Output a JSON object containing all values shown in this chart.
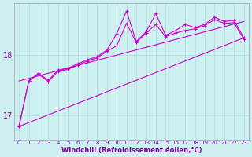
{
  "xlabel": "Windchill (Refroidissement éolien,°C)",
  "bg_color": "#cff0f0",
  "line_color": "#cc00cc",
  "grid_color": "#aadddd",
  "axis_color": "#9999bb",
  "text_color": "#8800aa",
  "xlim": [
    -0.5,
    23.5
  ],
  "ylim": [
    16.6,
    18.85
  ],
  "yticks": [
    17,
    18
  ],
  "xticks": [
    0,
    1,
    2,
    3,
    4,
    5,
    6,
    7,
    8,
    9,
    10,
    11,
    12,
    13,
    14,
    15,
    16,
    17,
    18,
    19,
    20,
    21,
    22,
    23
  ],
  "upper_line_x": [
    0,
    23
  ],
  "upper_line_y": [
    17.57,
    18.55
  ],
  "lower_line_x": [
    0,
    23
  ],
  "lower_line_y": [
    16.82,
    18.28
  ],
  "curve1_x": [
    0,
    1,
    2,
    3,
    4,
    5,
    6,
    7,
    8,
    9,
    10,
    11,
    12,
    13,
    14,
    15,
    16,
    17,
    18,
    19,
    20,
    21,
    22,
    23
  ],
  "curve1_y": [
    16.82,
    17.57,
    17.7,
    17.58,
    17.75,
    17.78,
    17.85,
    17.92,
    17.97,
    18.08,
    18.35,
    18.72,
    18.22,
    18.38,
    18.68,
    18.32,
    18.4,
    18.5,
    18.45,
    18.5,
    18.62,
    18.55,
    18.57,
    18.28
  ],
  "curve2_x": [
    0,
    1,
    2,
    3,
    4,
    5,
    6,
    7,
    8,
    9,
    10,
    11,
    12,
    13,
    14,
    15,
    16,
    17,
    18,
    19,
    20,
    21,
    22,
    23
  ],
  "curve2_y": [
    16.82,
    17.57,
    17.68,
    17.56,
    17.73,
    17.76,
    17.83,
    17.9,
    17.95,
    18.06,
    18.15,
    18.52,
    18.2,
    18.36,
    18.5,
    18.3,
    18.36,
    18.4,
    18.43,
    18.48,
    18.58,
    18.52,
    18.53,
    18.26
  ]
}
